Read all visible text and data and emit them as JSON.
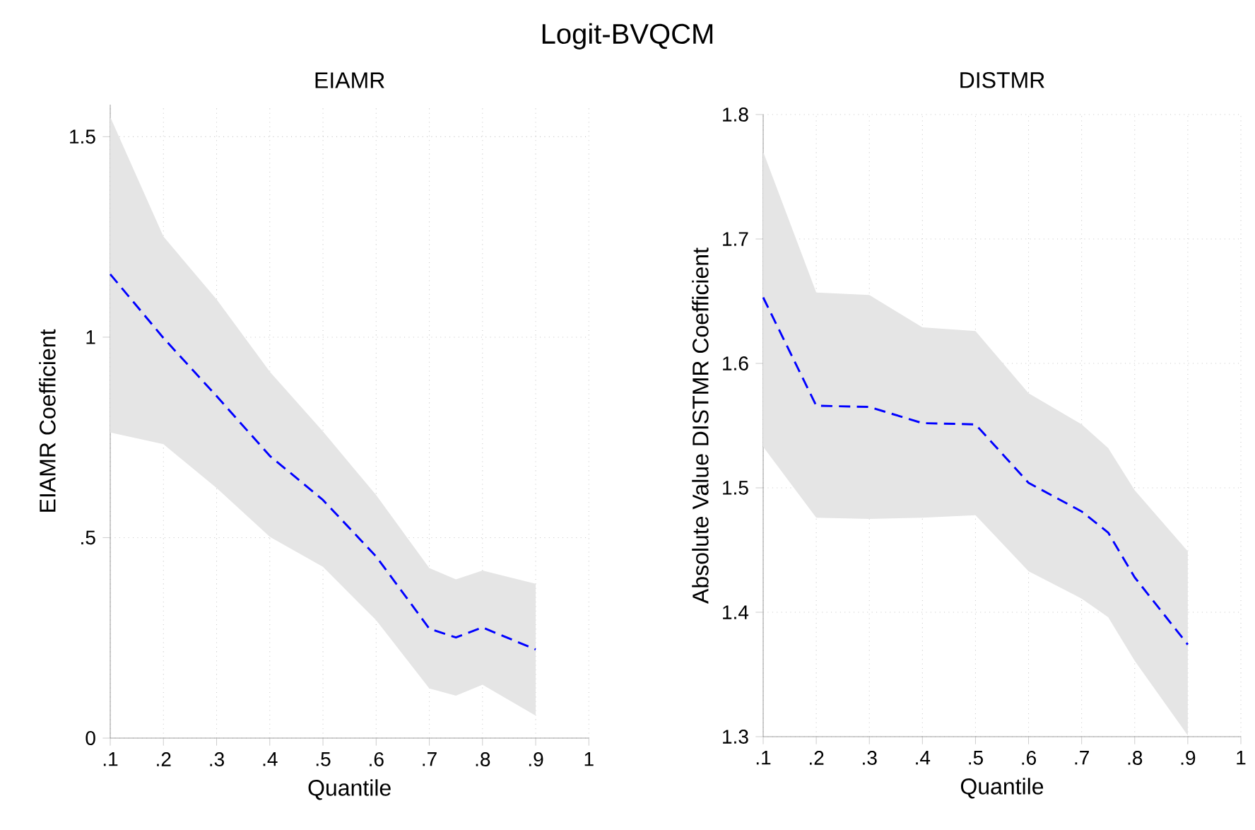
{
  "chart_data": [
    {
      "type": "line",
      "title": "Logit-BVQCM",
      "subtitle": "EIAMR",
      "xlabel": "Quantile",
      "ylabel": "EIAMR Coefficient",
      "grid": true,
      "line_style": "dashed",
      "x": [
        0.1,
        0.2,
        0.3,
        0.4,
        0.5,
        0.6,
        0.7,
        0.75,
        0.8,
        0.9
      ],
      "series": [
        {
          "color": "#0000ff",
          "values": [
            1.157,
            0.998,
            0.853,
            0.704,
            0.594,
            0.453,
            0.273,
            0.251,
            0.276,
            0.221
          ],
          "lower": [
            0.762,
            0.733,
            0.624,
            0.502,
            0.427,
            0.294,
            0.124,
            0.106,
            0.133,
            0.056
          ],
          "upper": [
            1.549,
            1.251,
            1.094,
            0.914,
            0.765,
            0.606,
            0.424,
            0.396,
            0.418,
            0.385
          ]
        }
      ],
      "xlim": [
        0.1,
        1
      ],
      "ylim": [
        0,
        1.58
      ],
      "xticks": [
        {
          "value": 0.1,
          "label": ".1"
        },
        {
          "value": 0.2,
          "label": ".2"
        },
        {
          "value": 0.3,
          "label": ".3"
        },
        {
          "value": 0.4,
          "label": ".4"
        },
        {
          "value": 0.5,
          "label": ".5"
        },
        {
          "value": 0.6,
          "label": ".6"
        },
        {
          "value": 0.7,
          "label": ".7"
        },
        {
          "value": 0.8,
          "label": ".8"
        },
        {
          "value": 0.9,
          "label": ".9"
        },
        1
      ],
      "yticks": [
        0,
        {
          "value": 0.5,
          "label": ".5"
        },
        1,
        1.5
      ]
    },
    {
      "type": "line",
      "subtitle": "DISTMR",
      "xlabel": "Quantile",
      "ylabel": "Absolute Value DISTMR Coefficient",
      "grid": true,
      "line_style": "dashed",
      "x": [
        0.1,
        0.2,
        0.3,
        0.4,
        0.5,
        0.6,
        0.7,
        0.75,
        0.8,
        0.9
      ],
      "series": [
        {
          "color": "#0000ff",
          "values": [
            1.653,
            1.566,
            1.565,
            1.552,
            1.551,
            1.504,
            1.481,
            1.464,
            1.428,
            1.374
          ],
          "lower": [
            1.533,
            1.476,
            1.475,
            1.476,
            1.478,
            1.433,
            1.411,
            1.396,
            1.361,
            1.301
          ],
          "upper": [
            1.77,
            1.657,
            1.655,
            1.629,
            1.626,
            1.576,
            1.551,
            1.532,
            1.498,
            1.449
          ]
        }
      ],
      "xlim": [
        0.1,
        1
      ],
      "ylim": [
        1.3,
        1.8
      ],
      "xticks": [
        {
          "value": 0.1,
          "label": ".1"
        },
        {
          "value": 0.2,
          "label": ".2"
        },
        {
          "value": 0.3,
          "label": ".3"
        },
        {
          "value": 0.4,
          "label": ".4"
        },
        {
          "value": 0.5,
          "label": ".5"
        },
        {
          "value": 0.6,
          "label": ".6"
        },
        {
          "value": 0.7,
          "label": ".7"
        },
        {
          "value": 0.8,
          "label": ".8"
        },
        {
          "value": 0.9,
          "label": ".9"
        },
        1
      ],
      "yticks": [
        1.3,
        1.4,
        1.5,
        1.6,
        1.7,
        1.8
      ]
    }
  ]
}
